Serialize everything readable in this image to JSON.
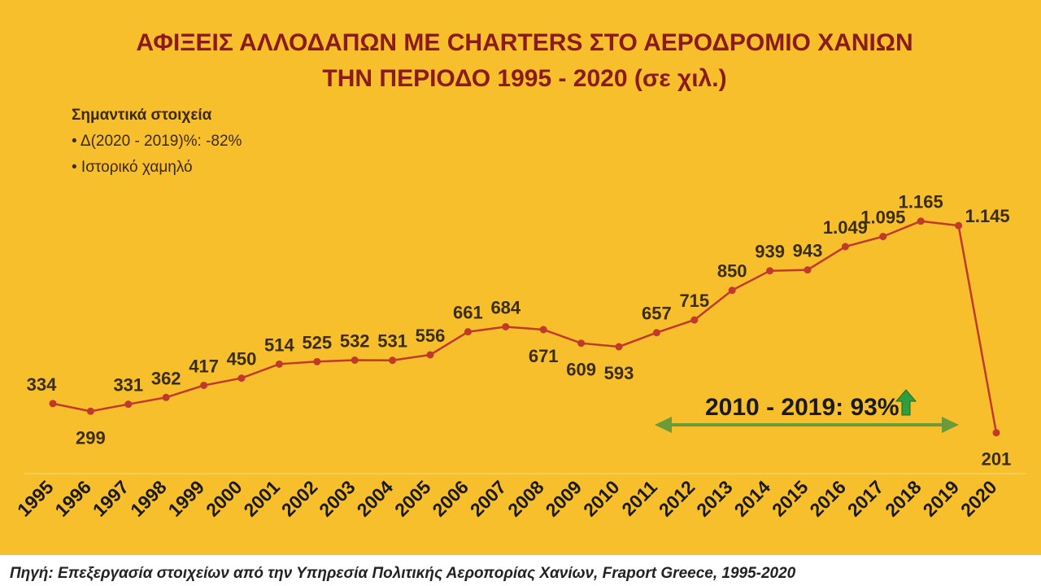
{
  "colors": {
    "background": "#f8bf2c",
    "title": "#8b1a1a",
    "line": "#c0392b",
    "growth_arrow": "#6a9a3a",
    "up_arrow": "#2e9e3e",
    "source_band": "#ffffff"
  },
  "notes": {
    "heading": "Σημαντικά στοιχεία",
    "items": [
      "• Δ(2020 - 2019)%: -82%",
      "• Ιστορικό χαμηλό"
    ]
  },
  "growth": {
    "label": "2010 - 2019: 93%",
    "icon": "up-arrow-icon"
  },
  "source": "Πηγή: Επεξεργασία στοιχείων από την Υπηρεσία Πολιτικής Αεροπορίας Χανίων, Fraport Greece, 1995-2020",
  "chart_data": {
    "type": "line",
    "title": "ΑΦΙΞΕΙΣ ΑΛΛΟΔΑΠΩΝ ΜΕ CHARTERS ΣΤΟ ΑΕΡΟΔΡΟΜΙΟ ΧΑΝΙΩΝ ΤΗΝ ΠΕΡΙΟΔΟ 1995 - 2020 (σε χιλ.)",
    "title_lines": [
      "ΑΦΙΞΕΙΣ ΑΛΛΟΔΑΠΩΝ ΜΕ CHARTERS ΣΤΟ ΑΕΡΟΔΡΟΜΙΟ ΧΑΝΙΩΝ",
      "ΤΗΝ ΠΕΡΙΟΔΟ 1995 - 2020 (σε χιλ.)"
    ],
    "xlabel": "",
    "ylabel": "",
    "x": [
      "1995",
      "1996",
      "1997",
      "1998",
      "1999",
      "2000",
      "2001",
      "2002",
      "2003",
      "2004",
      "2005",
      "2006",
      "2007",
      "2008",
      "2009",
      "2010",
      "2011",
      "2012",
      "2013",
      "2014",
      "2015",
      "2016",
      "2017",
      "2018",
      "2019",
      "2020"
    ],
    "series": [
      {
        "values": [
          334,
          299,
          331,
          362,
          417,
          450,
          514,
          525,
          532,
          531,
          556,
          661,
          684,
          671,
          609,
          593,
          657,
          715,
          850,
          939,
          943,
          1049,
          1095,
          1165,
          1145,
          201
        ],
        "labels": [
          "334",
          "299",
          "331",
          "362",
          "417",
          "450",
          "514",
          "525",
          "532",
          "531",
          "556",
          "661",
          "684",
          "671",
          "609",
          "593",
          "657",
          "715",
          "850",
          "939",
          "943",
          "1.049",
          "1.095",
          "1.165",
          "1.145",
          "201"
        ],
        "label_position": [
          "above",
          "below",
          "above",
          "above",
          "above",
          "above",
          "above",
          "above",
          "above",
          "above",
          "above",
          "above",
          "above",
          "below",
          "below",
          "below",
          "above",
          "above",
          "above",
          "above",
          "above",
          "above",
          "above",
          "above",
          "right",
          "below"
        ]
      }
    ],
    "ylim": [
      0,
      1200
    ],
    "grid": false,
    "legend": "none"
  }
}
